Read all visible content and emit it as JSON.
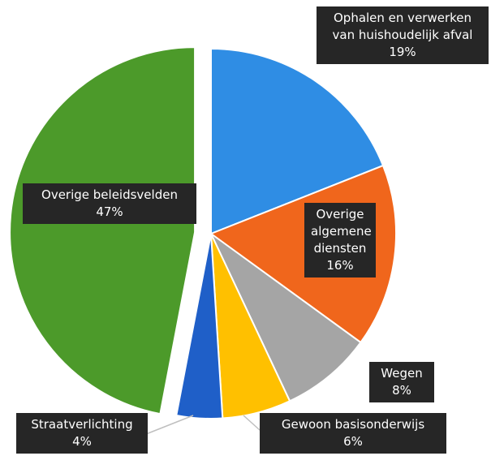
{
  "chart_data": {
    "type": "pie",
    "categories": [
      "Ophalen en verwerken van huishoudelijk afval",
      "Overige algemene diensten",
      "Wegen",
      "Gewoon basisonderwijs",
      "Straatverlichting",
      "Overige beleidsvelden"
    ],
    "values": [
      19,
      16,
      8,
      6,
      4,
      47
    ],
    "value_labels": [
      "19%",
      "16%",
      "8%",
      "6%",
      "4%",
      "47%"
    ],
    "colors": [
      "#2f8de4",
      "#f0661c",
      "#a5a5a5",
      "#ffc000",
      "#1f5fc8",
      "#4c9a2a"
    ]
  }
}
